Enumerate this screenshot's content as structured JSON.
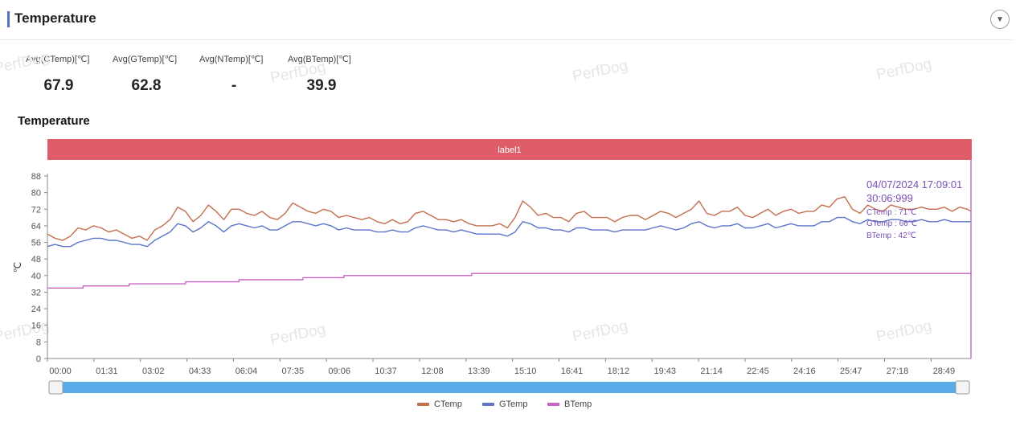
{
  "header": {
    "title": "Temperature"
  },
  "stats": [
    {
      "label": "Avg(CTemp)[℃]",
      "value": "67.9"
    },
    {
      "label": "Avg(GTemp)[℃]",
      "value": "62.8"
    },
    {
      "label": "Avg(NTemp)[℃]",
      "value": "-"
    },
    {
      "label": "Avg(BTemp)[℃]",
      "value": "39.9"
    }
  ],
  "watermark": "PerfDog",
  "chart_title": "Temperature",
  "label_band": "label1",
  "tooltip": {
    "line1": "04/07/2024 17:09:01",
    "line2": "30:06:999",
    "ctemp": "CTemp : 71℃",
    "gtemp": "GTemp : 66℃",
    "btemp": "BTemp : 42℃"
  },
  "colors": {
    "ctemp": "#c36f50",
    "gtemp": "#5d75c9",
    "btemp": "#c863c3",
    "band": "#de5d68",
    "slider": "#5aaae8"
  },
  "chart_data": {
    "type": "line",
    "ylabel": "℃",
    "ylim": [
      0,
      88
    ],
    "yticks": [
      0,
      8,
      16,
      24,
      32,
      40,
      48,
      56,
      64,
      72,
      80,
      88
    ],
    "xlim": [
      "00:00",
      "30:07"
    ],
    "xticks": [
      "00:00",
      "01:31",
      "03:02",
      "04:33",
      "06:04",
      "07:35",
      "09:06",
      "10:37",
      "12:08",
      "13:39",
      "15:10",
      "16:41",
      "18:12",
      "19:43",
      "21:14",
      "22:45",
      "24:16",
      "25:47",
      "27:18",
      "28:49"
    ],
    "grid": false,
    "legend": "bottom-center",
    "series": [
      {
        "name": "CTemp",
        "x": [
          "00:00",
          "00:15",
          "00:30",
          "00:45",
          "01:00",
          "01:15",
          "01:30",
          "01:45",
          "02:00",
          "02:15",
          "02:30",
          "02:45",
          "03:00",
          "03:15",
          "03:30",
          "03:45",
          "04:00",
          "04:15",
          "04:30",
          "04:45",
          "05:00",
          "05:15",
          "05:30",
          "05:45",
          "06:00",
          "06:15",
          "06:30",
          "06:45",
          "07:00",
          "07:15",
          "07:30",
          "07:45",
          "08:00",
          "08:15",
          "08:30",
          "08:45",
          "09:00",
          "09:15",
          "09:30",
          "09:45",
          "10:00",
          "10:15",
          "10:30",
          "10:45",
          "11:00",
          "11:15",
          "11:30",
          "11:45",
          "12:00",
          "12:15",
          "12:30",
          "12:45",
          "13:00",
          "13:15",
          "13:30",
          "13:45",
          "14:00",
          "14:15",
          "14:30",
          "14:45",
          "15:00",
          "15:15",
          "15:30",
          "15:45",
          "16:00",
          "16:15",
          "16:30",
          "16:45",
          "17:00",
          "17:15",
          "17:30",
          "17:45",
          "18:00",
          "18:15",
          "18:30",
          "18:45",
          "19:00",
          "19:15",
          "19:30",
          "19:45",
          "20:00",
          "20:15",
          "20:30",
          "20:45",
          "21:00",
          "21:15",
          "21:30",
          "21:45",
          "22:00",
          "22:15",
          "22:30",
          "22:45",
          "23:00",
          "23:15",
          "23:30",
          "23:45",
          "24:00",
          "24:15",
          "24:30",
          "24:45",
          "25:00",
          "25:15",
          "25:30",
          "25:45",
          "26:00",
          "26:15",
          "26:30",
          "26:45",
          "27:00",
          "27:15",
          "27:30",
          "27:45",
          "28:00",
          "28:15",
          "28:30",
          "28:45",
          "29:00",
          "29:15",
          "29:30",
          "29:45",
          "30:00",
          "30:07"
        ],
        "values": [
          60,
          58,
          57,
          59,
          63,
          62,
          64,
          63,
          61,
          62,
          60,
          58,
          59,
          57,
          62,
          64,
          67,
          73,
          71,
          66,
          69,
          74,
          71,
          67,
          72,
          72,
          70,
          69,
          71,
          68,
          67,
          70,
          75,
          73,
          71,
          70,
          72,
          71,
          68,
          69,
          68,
          67,
          68,
          66,
          65,
          67,
          65,
          66,
          70,
          71,
          69,
          67,
          67,
          66,
          67,
          65,
          64,
          64,
          64,
          65,
          63,
          68,
          76,
          73,
          69,
          70,
          68,
          68,
          66,
          70,
          71,
          68,
          68,
          68,
          66,
          68,
          69,
          69,
          67,
          69,
          71,
          70,
          68,
          70,
          72,
          76,
          70,
          69,
          71,
          71,
          73,
          69,
          68,
          70,
          72,
          69,
          71,
          72,
          70,
          71,
          71,
          74,
          73,
          77,
          78,
          72,
          70,
          74,
          72,
          71,
          74,
          73,
          72,
          72,
          73,
          72,
          72,
          73,
          71,
          73,
          72,
          71
        ]
      },
      {
        "name": "GTemp",
        "x": [
          "00:00",
          "00:15",
          "00:30",
          "00:45",
          "01:00",
          "01:15",
          "01:30",
          "01:45",
          "02:00",
          "02:15",
          "02:30",
          "02:45",
          "03:00",
          "03:15",
          "03:30",
          "03:45",
          "04:00",
          "04:15",
          "04:30",
          "04:45",
          "05:00",
          "05:15",
          "05:30",
          "05:45",
          "06:00",
          "06:15",
          "06:30",
          "06:45",
          "07:00",
          "07:15",
          "07:30",
          "07:45",
          "08:00",
          "08:15",
          "08:30",
          "08:45",
          "09:00",
          "09:15",
          "09:30",
          "09:45",
          "10:00",
          "10:15",
          "10:30",
          "10:45",
          "11:00",
          "11:15",
          "11:30",
          "11:45",
          "12:00",
          "12:15",
          "12:30",
          "12:45",
          "13:00",
          "13:15",
          "13:30",
          "13:45",
          "14:00",
          "14:15",
          "14:30",
          "14:45",
          "15:00",
          "15:15",
          "15:30",
          "15:45",
          "16:00",
          "16:15",
          "16:30",
          "16:45",
          "17:00",
          "17:15",
          "17:30",
          "17:45",
          "18:00",
          "18:15",
          "18:30",
          "18:45",
          "19:00",
          "19:15",
          "19:30",
          "19:45",
          "20:00",
          "20:15",
          "20:30",
          "20:45",
          "21:00",
          "21:15",
          "21:30",
          "21:45",
          "22:00",
          "22:15",
          "22:30",
          "22:45",
          "23:00",
          "23:15",
          "23:30",
          "23:45",
          "24:00",
          "24:15",
          "24:30",
          "24:45",
          "25:00",
          "25:15",
          "25:30",
          "25:45",
          "26:00",
          "26:15",
          "26:30",
          "26:45",
          "27:00",
          "27:15",
          "27:30",
          "27:45",
          "28:00",
          "28:15",
          "28:30",
          "28:45",
          "29:00",
          "29:15",
          "29:30",
          "29:45",
          "30:00",
          "30:07"
        ],
        "values": [
          54,
          55,
          54,
          54,
          56,
          57,
          58,
          58,
          57,
          57,
          56,
          55,
          55,
          54,
          57,
          59,
          61,
          65,
          64,
          61,
          63,
          66,
          64,
          61,
          64,
          65,
          64,
          63,
          64,
          62,
          62,
          64,
          66,
          66,
          65,
          64,
          65,
          64,
          62,
          63,
          62,
          62,
          62,
          61,
          61,
          62,
          61,
          61,
          63,
          64,
          63,
          62,
          62,
          61,
          62,
          61,
          60,
          60,
          60,
          60,
          59,
          61,
          66,
          65,
          63,
          63,
          62,
          62,
          61,
          63,
          63,
          62,
          62,
          62,
          61,
          62,
          62,
          62,
          62,
          63,
          64,
          63,
          62,
          63,
          65,
          66,
          64,
          63,
          64,
          64,
          65,
          63,
          63,
          64,
          65,
          63,
          64,
          65,
          64,
          64,
          64,
          66,
          66,
          68,
          68,
          66,
          65,
          67,
          66,
          66,
          67,
          67,
          66,
          66,
          67,
          66,
          66,
          67,
          66,
          66,
          66,
          66
        ]
      },
      {
        "name": "BTemp",
        "x": [
          "00:00",
          "01:10",
          "02:40",
          "04:30",
          "06:15",
          "08:20",
          "09:40",
          "13:50",
          "26:00",
          "30:07"
        ],
        "values": [
          34,
          35,
          36,
          37,
          38,
          39,
          40,
          41,
          41,
          42
        ]
      }
    ]
  }
}
